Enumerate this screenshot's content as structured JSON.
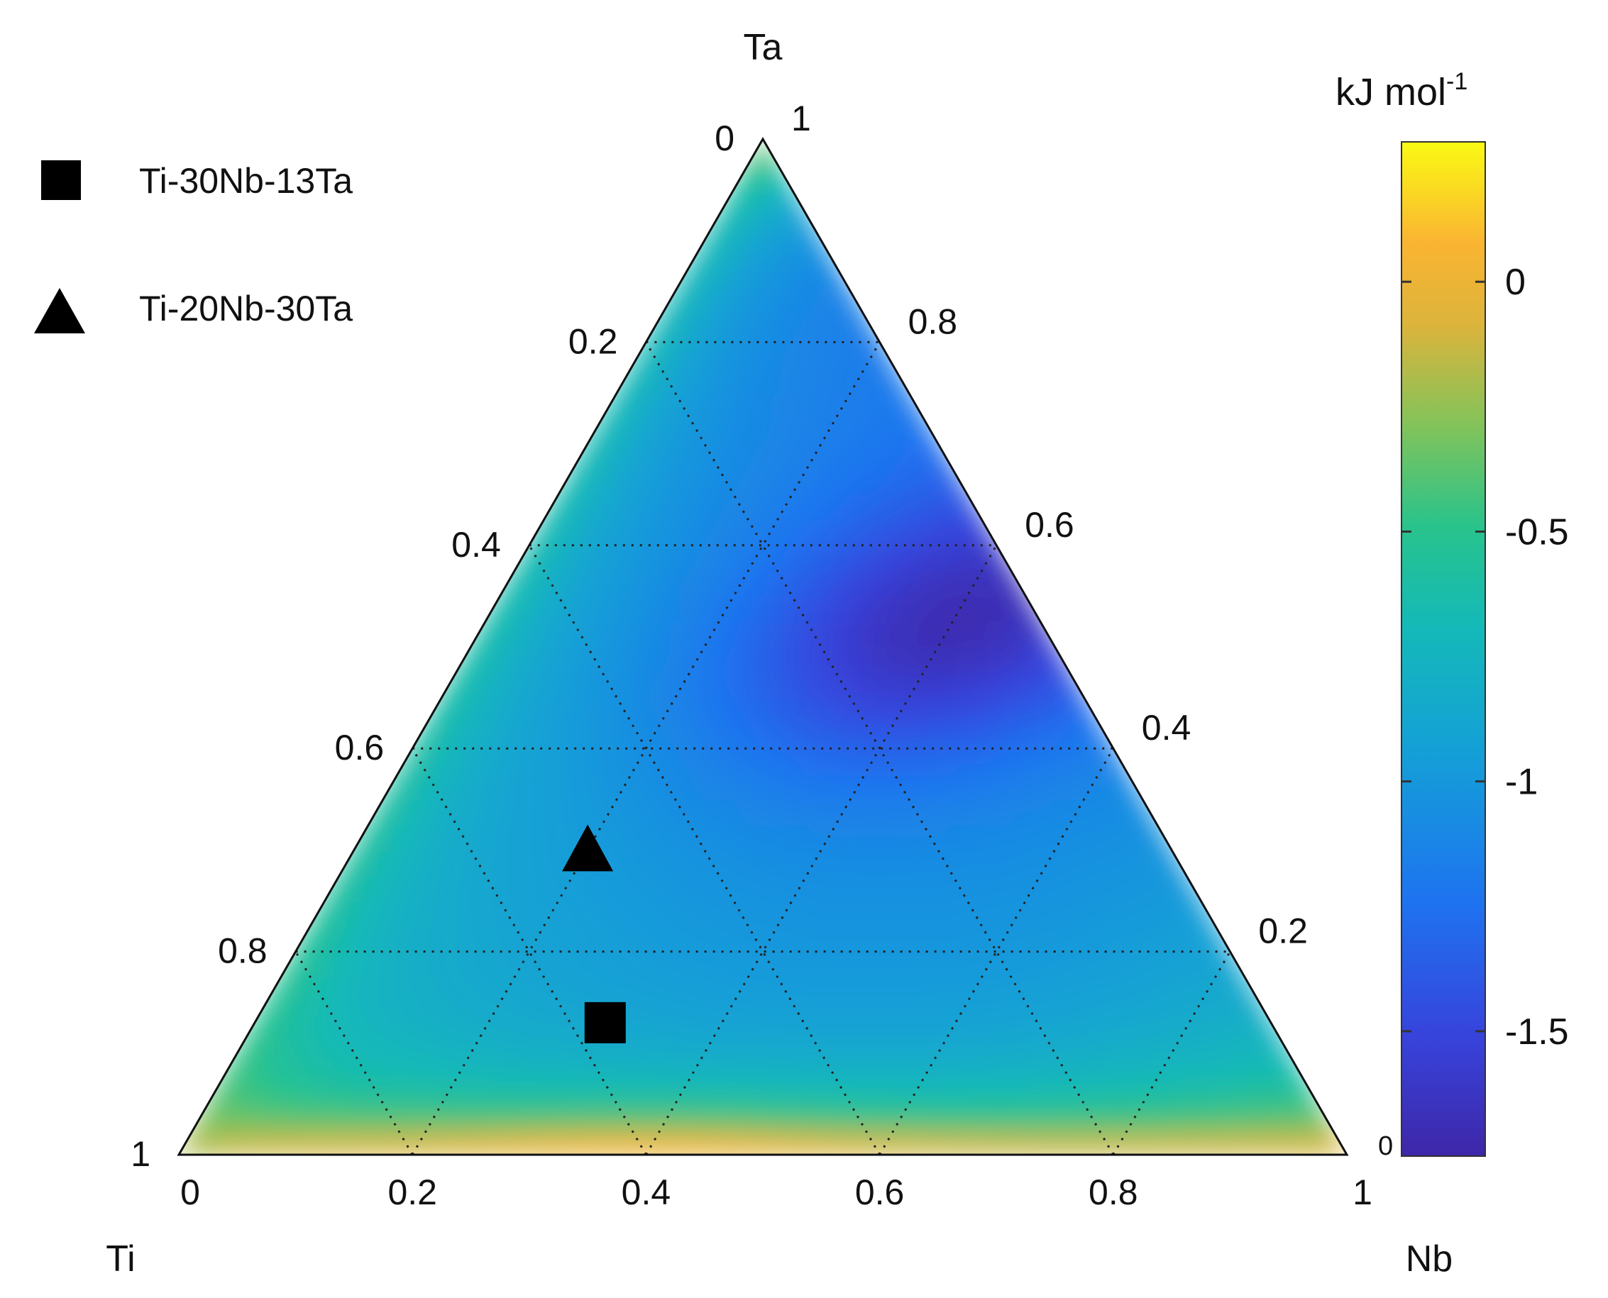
{
  "chart_data": {
    "type": "ternary-contour",
    "vertices": {
      "top": "Ta",
      "left": "Ti",
      "right": "Nb"
    },
    "ticks": {
      "left_edge": [
        "0",
        "0.2",
        "0.4",
        "0.6",
        "0.8",
        "1"
      ],
      "right_edge": [
        "1",
        "0.8",
        "0.6",
        "0.4",
        "0.2",
        "0"
      ],
      "bottom_edge": [
        "0",
        "0.2",
        "0.4",
        "0.6",
        "0.8",
        "1"
      ]
    },
    "grid": "dotted",
    "colorbar": {
      "title": "kJ mol",
      "title_sup": "-1",
      "min": -1.75,
      "max": 0.28,
      "ticks": [
        {
          "value": 0,
          "label": "0"
        },
        {
          "value": -0.5,
          "label": "-0.5"
        },
        {
          "value": -1,
          "label": "-1"
        },
        {
          "value": -1.5,
          "label": "-1.5"
        }
      ]
    },
    "legend": [
      {
        "marker": "square",
        "label": "Ti-30Nb-13Ta",
        "composition": {
          "Ti": 0.57,
          "Nb": 0.3,
          "Ta": 0.13
        }
      },
      {
        "marker": "triangle",
        "label": "Ti-20Nb-30Ta",
        "composition": {
          "Ti": 0.5,
          "Nb": 0.2,
          "Ta": 0.3
        }
      }
    ],
    "features": {
      "min_region": {
        "Ta": 0.52,
        "Nb": 0.4,
        "value": -1.75
      },
      "max_region": {
        "Ta": 0.01,
        "Nb": 0.4,
        "value": 0.25
      }
    }
  }
}
